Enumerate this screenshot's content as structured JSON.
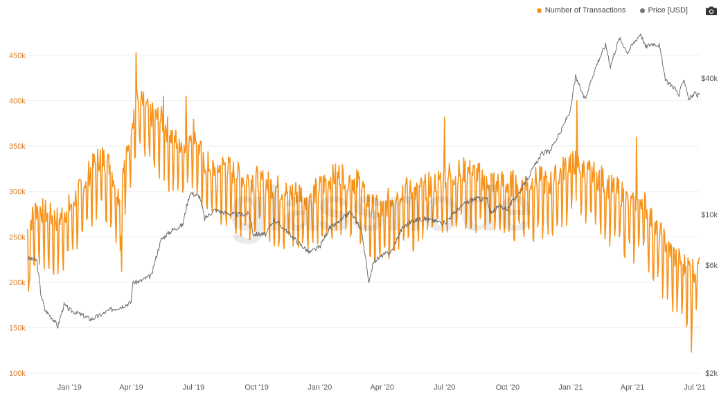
{
  "legend": {
    "series1_label": "Number of Transactions",
    "series2_label": "Price [USD]"
  },
  "watermark": "glassnode",
  "icons": {
    "export": "camera-icon"
  },
  "colors": {
    "transactions": "#f7931a",
    "price": "#6b6b6b",
    "left_axis_text": "#d97d2b",
    "right_axis_text": "#555555",
    "grid": "#eeeeee"
  },
  "chart_data": {
    "type": "line",
    "x_range": [
      "2018-11-01",
      "2021-07-08"
    ],
    "x_ticks": [
      {
        "date": "2019-01-01",
        "label": "Jan '19"
      },
      {
        "date": "2019-04-01",
        "label": "Apr '19"
      },
      {
        "date": "2019-07-01",
        "label": "Jul '19"
      },
      {
        "date": "2019-10-01",
        "label": "Oct '19"
      },
      {
        "date": "2020-01-01",
        "label": "Jan '20"
      },
      {
        "date": "2020-04-01",
        "label": "Apr '20"
      },
      {
        "date": "2020-07-01",
        "label": "Jul '20"
      },
      {
        "date": "2020-10-01",
        "label": "Oct '20"
      },
      {
        "date": "2021-01-01",
        "label": "Jan '21"
      },
      {
        "date": "2021-04-01",
        "label": "Apr '21"
      },
      {
        "date": "2021-07-01",
        "label": "Jul '21"
      }
    ],
    "y_left": {
      "range": [
        100000,
        450000
      ],
      "ticks": [
        {
          "value": 100000,
          "label": "100k"
        },
        {
          "value": 150000,
          "label": "150k"
        },
        {
          "value": 200000,
          "label": "200k"
        },
        {
          "value": 250000,
          "label": "250k"
        },
        {
          "value": 300000,
          "label": "300k"
        },
        {
          "value": 350000,
          "label": "350k"
        },
        {
          "value": 400000,
          "label": "400k"
        },
        {
          "value": 450000,
          "label": "450k"
        }
      ]
    },
    "y_right": {
      "scale": "log",
      "range": [
        2000,
        60000
      ],
      "ticks": [
        {
          "value": 2000,
          "label": "$2k"
        },
        {
          "value": 6000,
          "label": "$6k"
        },
        {
          "value": 10000,
          "label": "$10k"
        },
        {
          "value": 40000,
          "label": "$40k"
        }
      ]
    },
    "grid": true,
    "legend_position": "top-right",
    "series": [
      {
        "name": "Number of Transactions",
        "axis": "left",
        "values_note": "weekly samples, oscillating daily",
        "points": [
          [
            "2018-11-01",
            245000
          ],
          [
            "2018-11-15",
            270000
          ],
          [
            "2018-12-01",
            260000
          ],
          [
            "2018-12-15",
            255000
          ],
          [
            "2019-01-01",
            270000
          ],
          [
            "2019-01-15",
            285000
          ],
          [
            "2019-02-01",
            310000
          ],
          [
            "2019-02-15",
            325000
          ],
          [
            "2019-03-01",
            315000
          ],
          [
            "2019-03-15",
            280000
          ],
          [
            "2019-04-01",
            360000
          ],
          [
            "2019-04-10",
            390000
          ],
          [
            "2019-05-01",
            370000
          ],
          [
            "2019-05-15",
            365000
          ],
          [
            "2019-06-01",
            345000
          ],
          [
            "2019-06-15",
            340000
          ],
          [
            "2019-07-01",
            355000
          ],
          [
            "2019-07-15",
            320000
          ],
          [
            "2019-08-01",
            310000
          ],
          [
            "2019-08-15",
            315000
          ],
          [
            "2019-09-01",
            305000
          ],
          [
            "2019-09-15",
            300000
          ],
          [
            "2019-10-01",
            300000
          ],
          [
            "2019-10-15",
            295000
          ],
          [
            "2019-11-01",
            290000
          ],
          [
            "2019-11-15",
            285000
          ],
          [
            "2019-12-01",
            285000
          ],
          [
            "2019-12-15",
            280000
          ],
          [
            "2020-01-01",
            290000
          ],
          [
            "2020-01-15",
            300000
          ],
          [
            "2020-02-01",
            305000
          ],
          [
            "2020-02-15",
            300000
          ],
          [
            "2020-03-01",
            295000
          ],
          [
            "2020-03-15",
            270000
          ],
          [
            "2020-04-01",
            265000
          ],
          [
            "2020-04-15",
            280000
          ],
          [
            "2020-05-01",
            290000
          ],
          [
            "2020-05-15",
            285000
          ],
          [
            "2020-06-01",
            290000
          ],
          [
            "2020-06-15",
            295000
          ],
          [
            "2020-07-01",
            305000
          ],
          [
            "2020-07-15",
            305000
          ],
          [
            "2020-08-01",
            310000
          ],
          [
            "2020-08-15",
            305000
          ],
          [
            "2020-09-01",
            300000
          ],
          [
            "2020-09-15",
            295000
          ],
          [
            "2020-10-01",
            295000
          ],
          [
            "2020-10-15",
            295000
          ],
          [
            "2020-11-01",
            295000
          ],
          [
            "2020-11-15",
            300000
          ],
          [
            "2020-12-01",
            295000
          ],
          [
            "2020-12-15",
            305000
          ],
          [
            "2021-01-01",
            320000
          ],
          [
            "2021-01-15",
            315000
          ],
          [
            "2021-02-01",
            305000
          ],
          [
            "2021-02-15",
            300000
          ],
          [
            "2021-03-01",
            290000
          ],
          [
            "2021-03-15",
            285000
          ],
          [
            "2021-04-01",
            270000
          ],
          [
            "2021-04-15",
            280000
          ],
          [
            "2021-05-01",
            250000
          ],
          [
            "2021-05-15",
            235000
          ],
          [
            "2021-06-01",
            215000
          ],
          [
            "2021-06-15",
            205000
          ],
          [
            "2021-07-01",
            200000
          ],
          [
            "2021-07-08",
            225000
          ]
        ],
        "highlights": [
          [
            "2019-04-08",
            453000
          ],
          [
            "2019-06-20",
            405000
          ],
          [
            "2019-05-18",
            405000
          ],
          [
            "2020-07-01",
            382000
          ],
          [
            "2021-01-10",
            400000
          ],
          [
            "2021-04-07",
            360000
          ],
          [
            "2021-06-26",
            123000
          ],
          [
            "2019-03-18",
            212000
          ],
          [
            "2018-11-02",
            190000
          ]
        ]
      },
      {
        "name": "Price [USD]",
        "axis": "right",
        "points": [
          [
            "2018-11-01",
            6400
          ],
          [
            "2018-11-14",
            6300
          ],
          [
            "2018-11-20",
            4500
          ],
          [
            "2018-11-26",
            3800
          ],
          [
            "2018-12-10",
            3400
          ],
          [
            "2018-12-15",
            3200
          ],
          [
            "2018-12-24",
            4000
          ],
          [
            "2019-01-01",
            3800
          ],
          [
            "2019-01-15",
            3650
          ],
          [
            "2019-02-01",
            3450
          ],
          [
            "2019-02-15",
            3600
          ],
          [
            "2019-03-01",
            3800
          ],
          [
            "2019-03-15",
            3900
          ],
          [
            "2019-04-01",
            4100
          ],
          [
            "2019-04-03",
            5000
          ],
          [
            "2019-04-15",
            5100
          ],
          [
            "2019-05-01",
            5400
          ],
          [
            "2019-05-15",
            7800
          ],
          [
            "2019-06-01",
            8600
          ],
          [
            "2019-06-15",
            9000
          ],
          [
            "2019-06-26",
            12500
          ],
          [
            "2019-07-10",
            12000
          ],
          [
            "2019-07-17",
            9600
          ],
          [
            "2019-08-01",
            10500
          ],
          [
            "2019-08-15",
            10200
          ],
          [
            "2019-09-01",
            10000
          ],
          [
            "2019-09-20",
            10100
          ],
          [
            "2019-09-26",
            8200
          ],
          [
            "2019-10-15",
            8200
          ],
          [
            "2019-10-26",
            9500
          ],
          [
            "2019-11-01",
            9200
          ],
          [
            "2019-11-20",
            8100
          ],
          [
            "2019-12-01",
            7500
          ],
          [
            "2019-12-17",
            6800
          ],
          [
            "2020-01-01",
            7200
          ],
          [
            "2020-01-15",
            8700
          ],
          [
            "2020-02-01",
            9400
          ],
          [
            "2020-02-14",
            10300
          ],
          [
            "2020-03-01",
            8700
          ],
          [
            "2020-03-12",
            5000
          ],
          [
            "2020-03-20",
            6200
          ],
          [
            "2020-04-01",
            6600
          ],
          [
            "2020-04-15",
            6900
          ],
          [
            "2020-04-30",
            8700
          ],
          [
            "2020-05-15",
            9400
          ],
          [
            "2020-06-01",
            9600
          ],
          [
            "2020-06-15",
            9400
          ],
          [
            "2020-07-01",
            9200
          ],
          [
            "2020-07-27",
            11000
          ],
          [
            "2020-08-15",
            11800
          ],
          [
            "2020-09-01",
            11700
          ],
          [
            "2020-09-05",
            10200
          ],
          [
            "2020-09-20",
            10900
          ],
          [
            "2020-10-01",
            10600
          ],
          [
            "2020-10-21",
            12900
          ],
          [
            "2020-11-05",
            15500
          ],
          [
            "2020-11-20",
            18600
          ],
          [
            "2020-12-01",
            19000
          ],
          [
            "2020-12-17",
            23000
          ],
          [
            "2021-01-01",
            29000
          ],
          [
            "2021-01-08",
            40500
          ],
          [
            "2021-01-15",
            36000
          ],
          [
            "2021-01-22",
            32000
          ],
          [
            "2021-02-08",
            46000
          ],
          [
            "2021-02-21",
            56000
          ],
          [
            "2021-02-28",
            45000
          ],
          [
            "2021-03-13",
            60000
          ],
          [
            "2021-03-25",
            52000
          ],
          [
            "2021-04-13",
            63000
          ],
          [
            "2021-04-20",
            55000
          ],
          [
            "2021-05-01",
            57000
          ],
          [
            "2021-05-10",
            56000
          ],
          [
            "2021-05-19",
            39000
          ],
          [
            "2021-06-01",
            36500
          ],
          [
            "2021-06-08",
            33500
          ],
          [
            "2021-06-15",
            40000
          ],
          [
            "2021-06-22",
            32500
          ],
          [
            "2021-07-01",
            34000
          ],
          [
            "2021-07-08",
            33500
          ]
        ]
      }
    ]
  }
}
